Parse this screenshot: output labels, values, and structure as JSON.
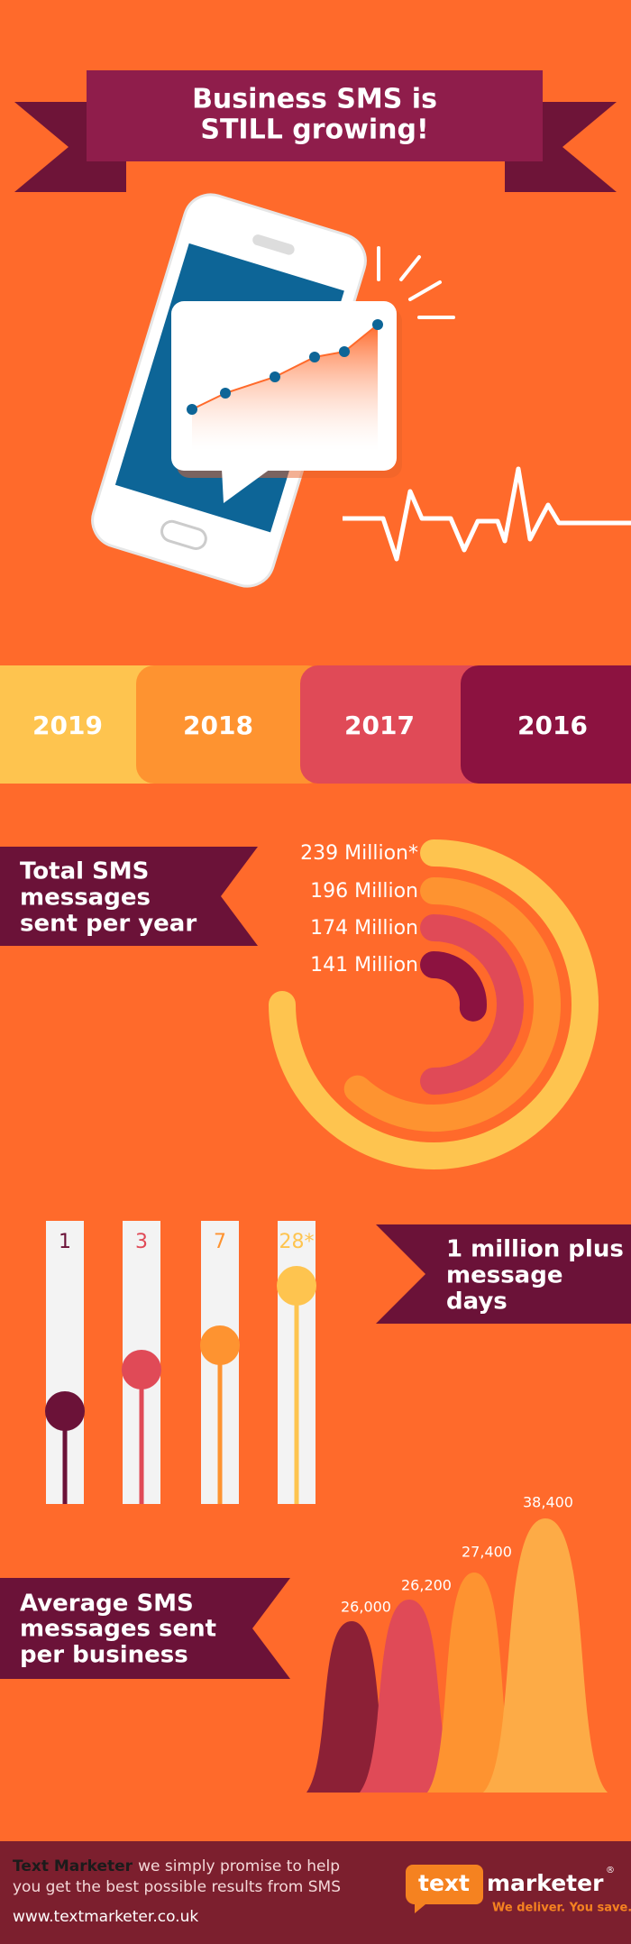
{
  "header": {
    "title": [
      "Business SMS is",
      "STILL growing!"
    ]
  },
  "years": [
    "2019",
    "2018",
    "2017",
    "2016"
  ],
  "total_sms": {
    "label": [
      "Total SMS",
      "messages",
      "sent per year"
    ],
    "values": [
      "239 Million*",
      "196 Million",
      "174 Million",
      "141 Million"
    ]
  },
  "million_days": {
    "label": [
      "1 million plus",
      "message",
      "days"
    ],
    "values": [
      "1",
      "3",
      "7",
      "28*"
    ]
  },
  "average": {
    "label": [
      "Average SMS",
      "messages sent",
      "per business"
    ],
    "values": [
      "26,000",
      "26,200",
      "27,400",
      "38,400"
    ]
  },
  "footer": {
    "brand": "Text Marketer",
    "tagline": [
      "we simply promise to help",
      "you get the best possible results from SMS"
    ],
    "url": "www.textmarketer.co.uk",
    "logo": {
      "word1": "text",
      "word2": "marketer",
      "slogan": "We deliver. You save."
    }
  }
}
